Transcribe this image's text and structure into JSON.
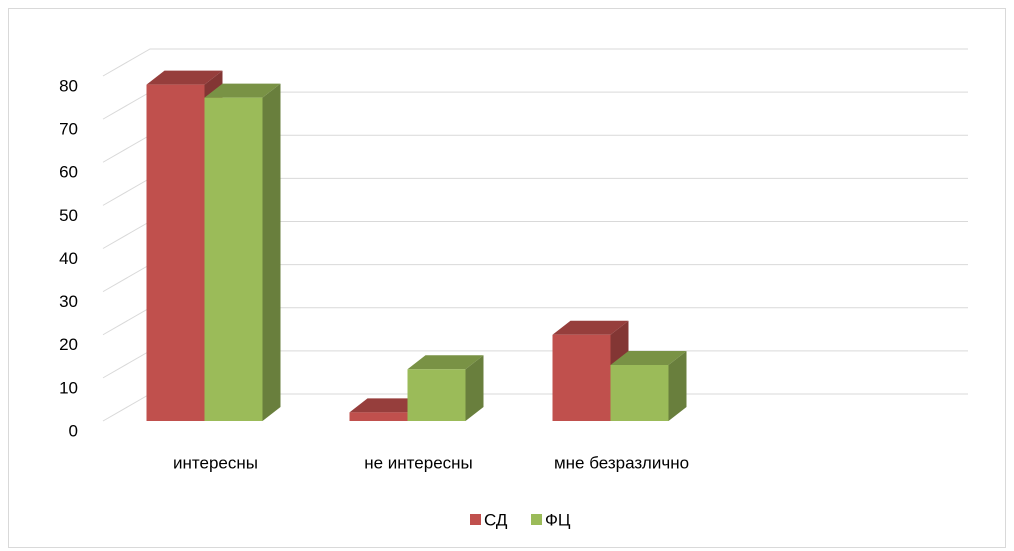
{
  "chart_data": {
    "type": "bar3d",
    "categories": [
      "интересны",
      "не интересны",
      "мне безразлично"
    ],
    "series": [
      {
        "name": "СД",
        "color": "#c0504d",
        "values": [
          78,
          2,
          20
        ]
      },
      {
        "name": "ФЦ",
        "color": "#9bbb59",
        "values": [
          75,
          12,
          13
        ]
      }
    ],
    "ylim": [
      0,
      80
    ],
    "yticks": [
      0,
      10,
      20,
      30,
      40,
      50,
      60,
      70,
      80
    ],
    "grid": true,
    "legend": "bottom"
  }
}
